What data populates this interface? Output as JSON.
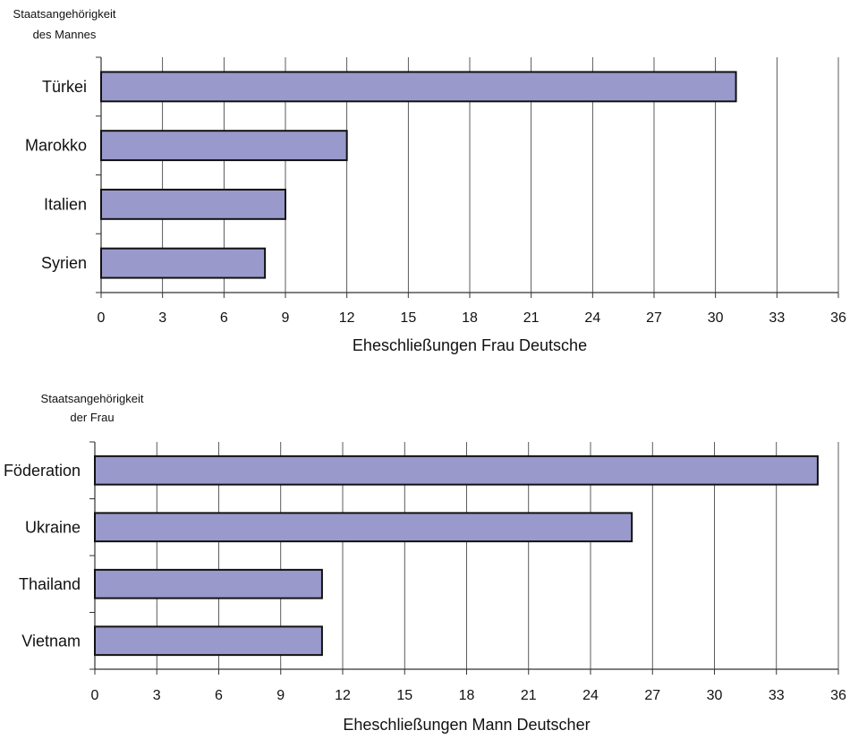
{
  "chart_data": [
    {
      "type": "bar",
      "orientation": "horizontal",
      "ylabel_lines": [
        "Staatsangehörigkeit",
        "des Mannes"
      ],
      "xlabel": "Eheschließungen Frau Deutsche",
      "categories": [
        "Türkei",
        "Marokko",
        "Italien",
        "Syrien"
      ],
      "values": [
        31,
        12,
        9,
        8
      ],
      "xlim": [
        0,
        36
      ],
      "xticks": [
        "0",
        "3",
        "6",
        "9",
        "12",
        "15",
        "18",
        "21",
        "24",
        "27",
        "30",
        "33",
        "36"
      ],
      "grid": "vertical",
      "bar_color": "#9999cc"
    },
    {
      "type": "bar",
      "orientation": "horizontal",
      "ylabel_lines": [
        "Staatsangehörigkeit",
        "der Frau"
      ],
      "xlabel": "Eheschließungen Mann Deutscher",
      "categories": [
        "Russische Föderation",
        "Ukraine",
        "Thailand",
        "Vietnam"
      ],
      "values": [
        35,
        26,
        11,
        11
      ],
      "xlim": [
        0,
        36
      ],
      "xticks": [
        "0",
        "3",
        "6",
        "9",
        "12",
        "15",
        "18",
        "21",
        "24",
        "27",
        "30",
        "33",
        "36"
      ],
      "grid": "vertical",
      "bar_color": "#9999cc"
    }
  ]
}
